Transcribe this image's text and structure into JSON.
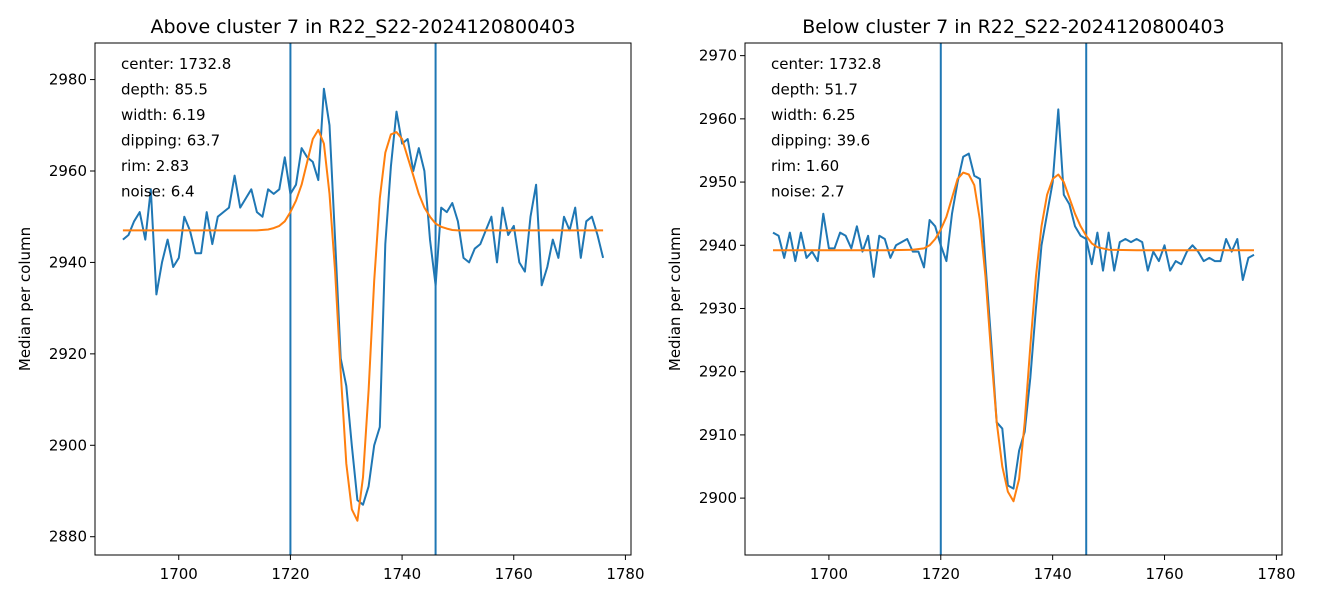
{
  "chart_data": [
    {
      "type": "line",
      "title": "Above cluster 7 in R22_S22-2024120800403",
      "xlabel": "",
      "ylabel": "Median per column",
      "xlim": [
        1685,
        1781
      ],
      "ylim": [
        2876,
        2988
      ],
      "xticks": [
        1700,
        1720,
        1740,
        1760,
        1780
      ],
      "yticks": [
        2880,
        2900,
        2920,
        2940,
        2960,
        2980
      ],
      "vlines": [
        1720,
        1746
      ],
      "stats": [
        "center: 1732.8",
        "depth: 85.5",
        "width: 6.19",
        "dipping: 63.7",
        "rim: 2.83",
        "noise: 6.4"
      ],
      "colors": {
        "data": "#1f77b4",
        "fit": "#ff7f0e",
        "vline": "#1f77b4"
      },
      "series": [
        {
          "key": "data",
          "x": [
            1690,
            1691,
            1692,
            1693,
            1694,
            1695,
            1696,
            1697,
            1698,
            1699,
            1700,
            1701,
            1702,
            1703,
            1704,
            1705,
            1706,
            1707,
            1708,
            1709,
            1710,
            1711,
            1712,
            1713,
            1714,
            1715,
            1716,
            1717,
            1718,
            1719,
            1720,
            1721,
            1722,
            1723,
            1724,
            1725,
            1726,
            1727,
            1728,
            1729,
            1730,
            1731,
            1732,
            1733,
            1734,
            1735,
            1736,
            1737,
            1738,
            1739,
            1740,
            1741,
            1742,
            1743,
            1744,
            1745,
            1746,
            1747,
            1748,
            1749,
            1750,
            1751,
            1752,
            1753,
            1754,
            1755,
            1756,
            1757,
            1758,
            1759,
            1760,
            1761,
            1762,
            1763,
            1764,
            1765,
            1766,
            1767,
            1768,
            1769,
            1770,
            1771,
            1772,
            1773,
            1774,
            1775,
            1776
          ],
          "y": [
            2945,
            2946,
            2949,
            2951,
            2945,
            2956,
            2933,
            2940,
            2945,
            2939,
            2941,
            2950,
            2947,
            2942,
            2942,
            2951,
            2944,
            2950,
            2951,
            2952,
            2959,
            2952,
            2954,
            2956,
            2951,
            2950,
            2956,
            2955,
            2956,
            2963,
            2955,
            2957,
            2965,
            2963,
            2962,
            2958,
            2978,
            2970,
            2945,
            2919,
            2913,
            2900,
            2888,
            2887,
            2891,
            2900,
            2904,
            2944,
            2961,
            2973,
            2966,
            2967,
            2960,
            2965,
            2960,
            2945,
            2935,
            2952,
            2951,
            2953,
            2949,
            2941,
            2940,
            2943,
            2944,
            2947,
            2950,
            2940,
            2952,
            2946,
            2948,
            2940,
            2938,
            2950,
            2957,
            2935,
            2939,
            2945,
            2941,
            2950,
            2947,
            2952,
            2941,
            2949,
            2950,
            2946,
            2941
          ]
        },
        {
          "key": "fit",
          "x": [
            1690,
            1695,
            1700,
            1705,
            1710,
            1714,
            1716,
            1717,
            1718,
            1719,
            1720,
            1721,
            1722,
            1723,
            1724,
            1725,
            1726,
            1727,
            1728,
            1729,
            1730,
            1731,
            1732,
            1733,
            1734,
            1735,
            1736,
            1737,
            1738,
            1739,
            1740,
            1741,
            1742,
            1743,
            1744,
            1745,
            1746,
            1747,
            1748,
            1749,
            1750,
            1752,
            1755,
            1760,
            1765,
            1770,
            1776
          ],
          "y": [
            2947,
            2947,
            2947,
            2947,
            2947,
            2947,
            2947.2,
            2947.5,
            2948,
            2949,
            2951,
            2953.5,
            2957,
            2962,
            2967,
            2969,
            2966,
            2955,
            2938,
            2916,
            2896,
            2886,
            2883.5,
            2893,
            2912,
            2936,
            2954,
            2964,
            2968,
            2968.5,
            2967,
            2963,
            2959,
            2955,
            2952,
            2950,
            2948.5,
            2947.8,
            2947.4,
            2947.1,
            2947,
            2947,
            2947,
            2947,
            2947,
            2947,
            2947
          ]
        }
      ]
    },
    {
      "type": "line",
      "title": "Below cluster 7 in R22_S22-2024120800403",
      "xlabel": "",
      "ylabel": "Median per column",
      "xlim": [
        1685,
        1781
      ],
      "ylim": [
        2891,
        2972
      ],
      "xticks": [
        1700,
        1720,
        1740,
        1760,
        1780
      ],
      "yticks": [
        2900,
        2910,
        2920,
        2930,
        2940,
        2950,
        2960,
        2970
      ],
      "vlines": [
        1720,
        1746
      ],
      "stats": [
        "center: 1732.8",
        "depth: 51.7",
        "width: 6.25",
        "dipping: 39.6",
        "rim: 1.60",
        "noise: 2.7"
      ],
      "colors": {
        "data": "#1f77b4",
        "fit": "#ff7f0e",
        "vline": "#1f77b4"
      },
      "series": [
        {
          "key": "data",
          "x": [
            1690,
            1691,
            1692,
            1693,
            1694,
            1695,
            1696,
            1697,
            1698,
            1699,
            1700,
            1701,
            1702,
            1703,
            1704,
            1705,
            1706,
            1707,
            1708,
            1709,
            1710,
            1711,
            1712,
            1713,
            1714,
            1715,
            1716,
            1717,
            1718,
            1719,
            1720,
            1721,
            1722,
            1723,
            1724,
            1725,
            1726,
            1727,
            1728,
            1729,
            1730,
            1731,
            1732,
            1733,
            1734,
            1735,
            1736,
            1737,
            1738,
            1739,
            1740,
            1741,
            1742,
            1743,
            1744,
            1745,
            1746,
            1747,
            1748,
            1749,
            1750,
            1751,
            1752,
            1753,
            1754,
            1755,
            1756,
            1757,
            1758,
            1759,
            1760,
            1761,
            1762,
            1763,
            1764,
            1765,
            1766,
            1767,
            1768,
            1769,
            1770,
            1771,
            1772,
            1773,
            1774,
            1775,
            1776
          ],
          "y": [
            2942,
            2941.5,
            2938,
            2942,
            2937.5,
            2942,
            2938,
            2939,
            2937.5,
            2945,
            2939.5,
            2939.5,
            2942,
            2941.5,
            2939.5,
            2943,
            2939,
            2941.5,
            2935,
            2941.5,
            2941,
            2938,
            2940,
            2940.5,
            2941,
            2939,
            2939,
            2936.5,
            2944,
            2943,
            2940,
            2937.5,
            2945,
            2950,
            2954,
            2954.5,
            2951,
            2950.5,
            2937,
            2925,
            2912,
            2911,
            2902,
            2901.5,
            2907.5,
            2910.5,
            2919,
            2930,
            2940,
            2945,
            2950,
            2961.5,
            2948,
            2946.5,
            2943,
            2941.5,
            2941,
            2937,
            2942,
            2936,
            2942,
            2936,
            2940.5,
            2941,
            2940.5,
            2941,
            2940.5,
            2936,
            2939,
            2937.5,
            2940,
            2936,
            2937.5,
            2937,
            2939,
            2940,
            2939,
            2937.5,
            2938,
            2937.5,
            2937.5,
            2941,
            2939,
            2941,
            2934.5,
            2938,
            2938.5
          ]
        },
        {
          "key": "fit",
          "x": [
            1690,
            1695,
            1700,
            1705,
            1710,
            1715,
            1717,
            1718,
            1719,
            1720,
            1721,
            1722,
            1723,
            1724,
            1725,
            1726,
            1727,
            1728,
            1729,
            1730,
            1731,
            1732,
            1733,
            1734,
            1735,
            1736,
            1737,
            1738,
            1739,
            1740,
            1741,
            1742,
            1743,
            1744,
            1745,
            1746,
            1747,
            1748,
            1750,
            1755,
            1760,
            1765,
            1770,
            1776
          ],
          "y": [
            2939.2,
            2939.2,
            2939.2,
            2939.2,
            2939.2,
            2939.3,
            2939.5,
            2940,
            2941,
            2942.5,
            2944.5,
            2947.5,
            2950.5,
            2951.5,
            2951.2,
            2949.5,
            2944,
            2935,
            2923,
            2912,
            2905,
            2901,
            2899.5,
            2903,
            2912,
            2924,
            2935,
            2943,
            2948,
            2950.5,
            2951.2,
            2950,
            2947.5,
            2945,
            2943,
            2941.5,
            2940.3,
            2939.7,
            2939.3,
            2939.2,
            2939.2,
            2939.2,
            2939.2,
            2939.2
          ]
        }
      ]
    }
  ]
}
